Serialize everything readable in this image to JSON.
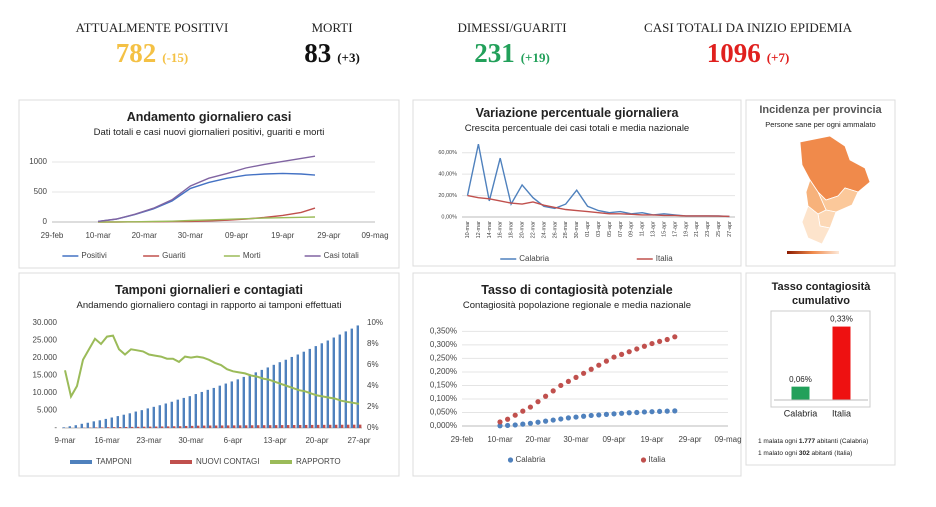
{
  "kpis": [
    {
      "label": "ATTUALMENTE POSITIVI",
      "value": "782",
      "delta": "(-15)",
      "color": "#f4c145"
    },
    {
      "label": "MORTI",
      "value": "83",
      "delta": "(+3)",
      "color": "#111111"
    },
    {
      "label": "DIMESSI/GUARITI",
      "value": "231",
      "delta": "(+19)",
      "color": "#22a05a"
    },
    {
      "label": "CASI TOTALI DA INIZIO EPIDEMIA",
      "value": "1096",
      "delta": "(+7)",
      "color": "#e0201e"
    }
  ],
  "map": {
    "title": "Incidenza per provincia",
    "subtitle": "Persone sane per ogni ammalato"
  },
  "notes": [
    {
      "pre": "1 malata ogni ",
      "bold": "1.777",
      "post": " abitanti (Calabria)"
    },
    {
      "pre": "1 malato ogni ",
      "bold": "302",
      "post": " abitanti (Italia)"
    }
  ],
  "chart_data": [
    {
      "type": "line",
      "title": "Andamento giornaliero casi",
      "subtitle": "Dati totali e casi nuovi giornalieri positivi, guariti e morti",
      "x": [
        "10-mar",
        "14-mar",
        "18-mar",
        "22-mar",
        "26-mar",
        "30-mar",
        "03-apr",
        "07-apr",
        "11-apr",
        "15-apr",
        "19-apr",
        "23-apr",
        "26-apr"
      ],
      "xlim": [
        "29-feb",
        "09-mag"
      ],
      "xticks": [
        "29-feb",
        "10-mar",
        "20-mar",
        "30-mar",
        "09-apr",
        "19-apr",
        "29-apr",
        "09-mag"
      ],
      "ylim": [
        0,
        1200
      ],
      "yticks": [
        0,
        500,
        1000
      ],
      "grid": true,
      "legend": "bottom",
      "series": [
        {
          "name": "Positivi",
          "color": "#4472c4",
          "values": [
            10,
            48,
            125,
            220,
            350,
            560,
            660,
            730,
            780,
            800,
            810,
            800,
            782
          ]
        },
        {
          "name": "Guariti",
          "color": "#c0504d",
          "values": [
            0,
            0,
            1,
            3,
            6,
            10,
            18,
            30,
            50,
            75,
            110,
            160,
            231
          ]
        },
        {
          "name": "Morti",
          "color": "#9bbb59",
          "values": [
            0,
            2,
            4,
            8,
            14,
            25,
            35,
            45,
            55,
            65,
            72,
            78,
            83
          ]
        },
        {
          "name": "Casi totali",
          "color": "#8064a2",
          "values": [
            10,
            50,
            130,
            230,
            370,
            600,
            730,
            810,
            900,
            960,
            1010,
            1060,
            1096
          ]
        }
      ]
    },
    {
      "type": "line",
      "title": "Variazione percentuale giornaliera",
      "subtitle": "Crescita percentuale dei casi totali e media nazionale",
      "categories": [
        "10-mar",
        "12-mar",
        "14-mar",
        "16-mar",
        "18-mar",
        "20-mar",
        "22-mar",
        "24-mar",
        "26-mar",
        "28-mar",
        "30-mar",
        "01-apr",
        "03-apr",
        "05-apr",
        "07-apr",
        "09-apr",
        "11-apr",
        "13-apr",
        "15-apr",
        "17-apr",
        "19-apr",
        "21-apr",
        "23-apr",
        "25-apr",
        "27-apr"
      ],
      "ylim": [
        0,
        70
      ],
      "yticks": [
        {
          "value": 0,
          "label": "0,00%"
        },
        {
          "value": 20,
          "label": "20,00%"
        },
        {
          "value": 40,
          "label": "40,00%"
        },
        {
          "value": 60,
          "label": "60,00%"
        }
      ],
      "grid": true,
      "legend": "bottom",
      "series": [
        {
          "name": "Calabria",
          "color": "#4f81bd",
          "values": [
            20,
            68,
            15,
            55,
            12,
            30,
            18,
            10,
            8,
            12,
            25,
            10,
            6,
            4,
            5,
            3,
            4,
            2,
            3,
            2,
            1,
            1,
            1,
            1,
            0.5
          ]
        },
        {
          "name": "Italia",
          "color": "#c0504d",
          "values": [
            20,
            18,
            17,
            15,
            13,
            12,
            14,
            11,
            9,
            7,
            6,
            5,
            4,
            3,
            3,
            2.5,
            2,
            2,
            1.5,
            1.5,
            1,
            1,
            1,
            0.8,
            0.6
          ]
        }
      ]
    },
    {
      "type": "combo",
      "title": "Tamponi giornalieri e contagiati",
      "subtitle": "Andamendo giornaliero contagi in rapporto ai tamponi effettuati",
      "categories": [
        "9-mar",
        null,
        null,
        null,
        null,
        null,
        null,
        "16-mar",
        null,
        null,
        null,
        null,
        null,
        null,
        "23-mar",
        null,
        null,
        null,
        null,
        null,
        null,
        "30-mar",
        null,
        null,
        null,
        null,
        null,
        null,
        "6-apr",
        null,
        null,
        null,
        null,
        null,
        null,
        "13-apr",
        null,
        null,
        null,
        null,
        null,
        null,
        "20-apr",
        null,
        null,
        null,
        null,
        null,
        null,
        "27-apr"
      ],
      "ylim": [
        0,
        30000
      ],
      "yticks": [
        {
          "value": 0,
          "label": "-"
        },
        {
          "value": 5000,
          "label": "5.000"
        },
        {
          "value": 10000,
          "label": "10.000"
        },
        {
          "value": 15000,
          "label": "15.000"
        },
        {
          "value": 20000,
          "label": "20.000"
        },
        {
          "value": 25000,
          "label": "25.000"
        },
        {
          "value": 30000,
          "label": "30.000"
        }
      ],
      "y2lim": [
        0,
        10
      ],
      "y2ticks": [
        {
          "value": 0,
          "label": "0%"
        },
        {
          "value": 2,
          "label": "2%"
        },
        {
          "value": 4,
          "label": "4%"
        },
        {
          "value": 6,
          "label": "6%"
        },
        {
          "value": 8,
          "label": "8%"
        },
        {
          "value": 10,
          "label": "10%"
        }
      ],
      "grid": false,
      "legend": "bottom",
      "series": [
        {
          "name": "TAMPONI",
          "color": "#4f81bd",
          "values": [
            200,
            500,
            800,
            1200,
            1500,
            1900,
            2200,
            2600,
            3000,
            3400,
            3800,
            4200,
            4700,
            5100,
            5600,
            6050,
            6500,
            7000,
            7500,
            8100,
            8600,
            9100,
            9700,
            10300,
            10900,
            11450,
            12100,
            12700,
            13300,
            13900,
            14600,
            15300,
            15900,
            16600,
            17300,
            18050,
            18800,
            19500,
            20300,
            21000,
            21800,
            22600,
            23400,
            24200,
            25000,
            25850,
            26700,
            27600,
            28400,
            29300
          ]
        },
        {
          "name": "NUOVI CONTAGI",
          "color": "#c0504d",
          "values": [
            11,
            15,
            32,
            78,
            113,
            162,
            176,
            226,
            264,
            270,
            290,
            315,
            348,
            372,
            392,
            417,
            442,
            462,
            495,
            510,
            585,
            610,
            660,
            690,
            709,
            715,
            726,
            735,
            750,
            760,
            770,
            780,
            790,
            800,
            810,
            820,
            830,
            840,
            850,
            860,
            870,
            880,
            890,
            900,
            910,
            920,
            930,
            940,
            950,
            960
          ]
        },
        {
          "name": "RAPPORTO",
          "color": "#9bbb59",
          "axis": "y2",
          "values": [
            5.5,
            3.0,
            4.0,
            6.5,
            7.5,
            8.5,
            8.0,
            8.7,
            8.8,
            7.5,
            7.0,
            7.5,
            7.4,
            7.3,
            7.0,
            6.9,
            6.8,
            6.6,
            6.6,
            6.3,
            6.8,
            6.7,
            6.8,
            6.7,
            6.5,
            6.2,
            6.0,
            5.6,
            5.4,
            5.3,
            5.2,
            5.0,
            4.9,
            4.7,
            4.6,
            4.4,
            4.2,
            4.0,
            3.8,
            3.6,
            3.5,
            3.3,
            3.1,
            3.0,
            2.9,
            2.8,
            2.6,
            2.5,
            2.4,
            2.3
          ]
        }
      ]
    },
    {
      "type": "scatter",
      "title": "Tasso di contagiosità potenziale",
      "subtitle": "Contagiosità popolazione regionale e media nazionale",
      "x": [
        "10-mar",
        "12-mar",
        "14-mar",
        "16-mar",
        "18-mar",
        "20-mar",
        "22-mar",
        "24-mar",
        "26-mar",
        "28-mar",
        "30-mar",
        "01-apr",
        "03-apr",
        "05-apr",
        "07-apr",
        "09-apr",
        "11-apr",
        "13-apr",
        "15-apr",
        "17-apr",
        "19-apr",
        "21-apr",
        "23-apr",
        "25-apr"
      ],
      "xlim": [
        "29-feb",
        "09-mag"
      ],
      "xticks": [
        "29-feb",
        "10-mar",
        "20-mar",
        "30-mar",
        "09-apr",
        "19-apr",
        "29-apr",
        "09-mag"
      ],
      "ylim": [
        0,
        0.37
      ],
      "yticks": [
        {
          "value": 0,
          "label": "0,000%"
        },
        {
          "value": 0.05,
          "label": "0,050%"
        },
        {
          "value": 0.1,
          "label": "0,100%"
        },
        {
          "value": 0.15,
          "label": "0,150%"
        },
        {
          "value": 0.2,
          "label": "0,200%"
        },
        {
          "value": 0.25,
          "label": "0,250%"
        },
        {
          "value": 0.3,
          "label": "0,300%"
        },
        {
          "value": 0.35,
          "label": "0,350%"
        }
      ],
      "grid": true,
      "legend": "bottom",
      "series": [
        {
          "name": "Calabria",
          "color": "#4f81bd",
          "values": [
            0.001,
            0.002,
            0.004,
            0.007,
            0.01,
            0.014,
            0.018,
            0.022,
            0.026,
            0.03,
            0.033,
            0.036,
            0.039,
            0.041,
            0.043,
            0.045,
            0.047,
            0.049,
            0.05,
            0.052,
            0.053,
            0.054,
            0.055,
            0.056
          ]
        },
        {
          "name": "Italia",
          "color": "#c0504d",
          "values": [
            0.015,
            0.025,
            0.04,
            0.055,
            0.07,
            0.09,
            0.11,
            0.13,
            0.15,
            0.165,
            0.18,
            0.195,
            0.21,
            0.225,
            0.24,
            0.255,
            0.265,
            0.275,
            0.285,
            0.295,
            0.305,
            0.313,
            0.32,
            0.33
          ]
        }
      ]
    },
    {
      "type": "bar",
      "title": "Tasso contagiosità cumulativo",
      "categories": [
        "Calabria",
        "Italia"
      ],
      "values": [
        0.06,
        0.33
      ],
      "value_labels": [
        "0,06%",
        "0,33%"
      ],
      "colors": [
        "#22a05a",
        "#ee1111"
      ],
      "ylim": [
        0,
        0.4
      ]
    }
  ]
}
